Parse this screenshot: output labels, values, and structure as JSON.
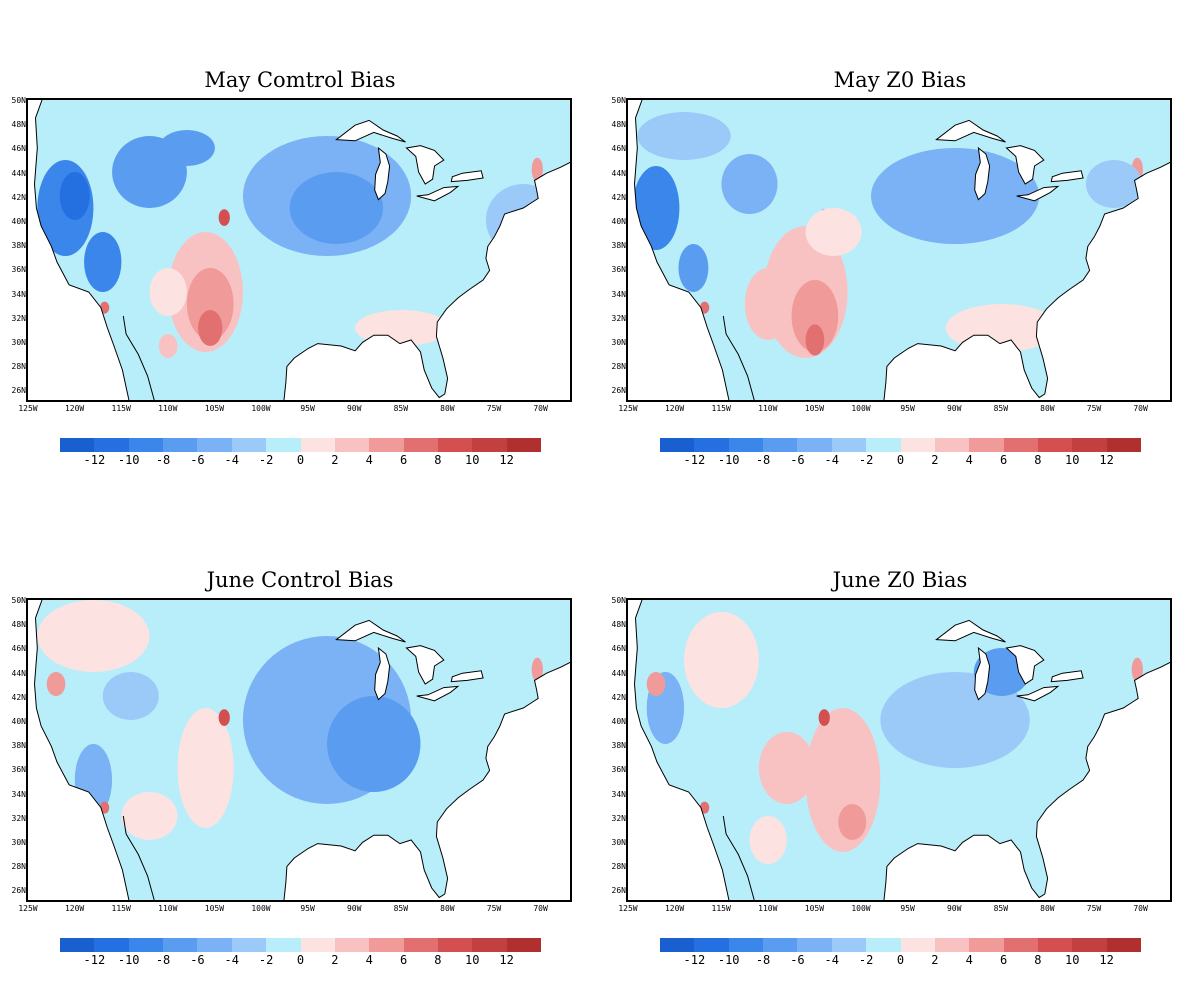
{
  "panels": [
    {
      "title": "May Comtrol Bias"
    },
    {
      "title": "May Z0 Bias"
    },
    {
      "title": "June Control Bias"
    },
    {
      "title": "June Z0 Bias"
    }
  ],
  "lat_labels": [
    "50N",
    "48N",
    "46N",
    "44N",
    "42N",
    "40N",
    "38N",
    "36N",
    "34N",
    "32N",
    "30N",
    "28N",
    "26N"
  ],
  "lon_labels": [
    "125W",
    "120W",
    "115W",
    "110W",
    "105W",
    "100W",
    "95W",
    "90W",
    "85W",
    "80W",
    "75W",
    "70W"
  ],
  "colorbar": {
    "labels": [
      "-12",
      "-10",
      "-8",
      "-6",
      "-4",
      "-2",
      "0",
      "2",
      "4",
      "6",
      "8",
      "10",
      "12"
    ],
    "colors": [
      "#1a5fd0",
      "#2470e0",
      "#3a86ea",
      "#5a9cf0",
      "#7ab2f5",
      "#9ccaf8",
      "#b8eefa",
      "#fde2e2",
      "#f9c2c2",
      "#f19a9a",
      "#e27070",
      "#d45050",
      "#c24040",
      "#b03030"
    ]
  }
}
